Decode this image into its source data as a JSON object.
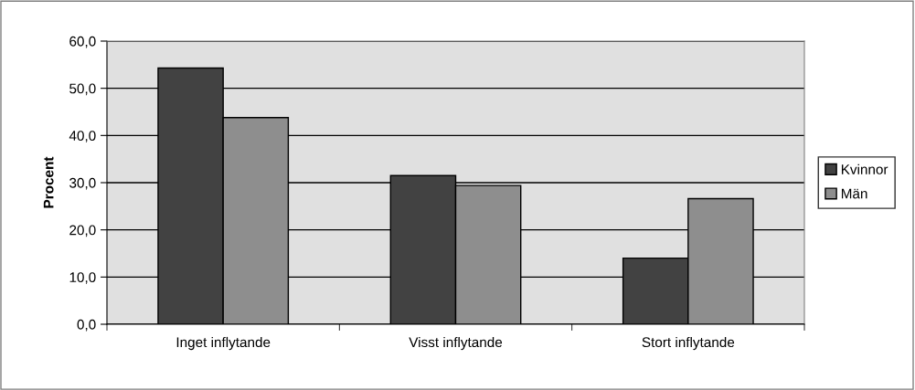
{
  "chart_data": {
    "type": "bar",
    "ylabel": "Procent",
    "categories": [
      "Inget inflytande",
      "Visst inflytande",
      "Stort inflytande"
    ],
    "series": [
      {
        "name": "Kvinnor",
        "color": "#424242",
        "values": [
          54.3,
          31.5,
          14.0
        ]
      },
      {
        "name": "Män",
        "color": "#8e8e8e",
        "values": [
          43.8,
          29.4,
          26.6
        ]
      }
    ],
    "ylim": [
      0,
      60
    ],
    "yticks": [
      {
        "value": 0,
        "label": "0,0"
      },
      {
        "value": 10,
        "label": "10,0"
      },
      {
        "value": 20,
        "label": "20,0"
      },
      {
        "value": 30,
        "label": "30,0"
      },
      {
        "value": 40,
        "label": "40,0"
      },
      {
        "value": 50,
        "label": "50,0"
      },
      {
        "value": 60,
        "label": "60,0"
      }
    ],
    "grid": "y",
    "legend": "right"
  }
}
